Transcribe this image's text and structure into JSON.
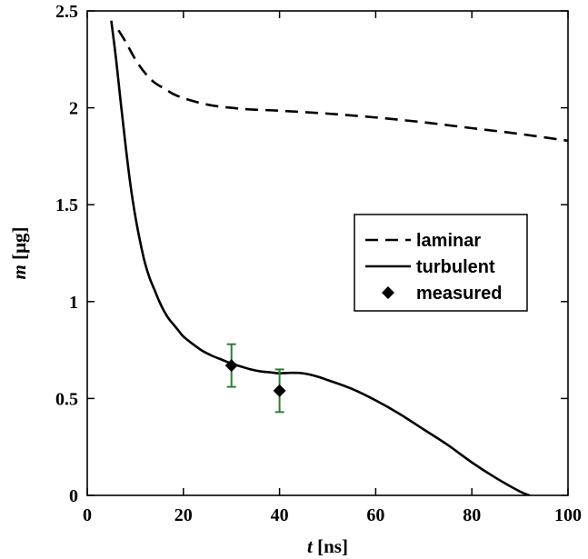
{
  "chart_data": {
    "type": "line",
    "title": "",
    "xlabel": {
      "var": "t",
      "unit": " [ns]"
    },
    "ylabel": {
      "var": "m",
      "unit": " [μg]"
    },
    "xlim": [
      0,
      100
    ],
    "ylim": [
      0,
      2.5
    ],
    "xticks": [
      0,
      20,
      40,
      60,
      80,
      100
    ],
    "xtick_labels": [
      "0",
      "20",
      "40",
      "60",
      "80",
      "100"
    ],
    "yticks": [
      0,
      0.5,
      1,
      1.5,
      2,
      2.5
    ],
    "ytick_labels": [
      "0",
      "0.5",
      "1",
      "1.5",
      "2",
      "2.5"
    ],
    "grid": false,
    "legend_position": "right-middle",
    "series": [
      {
        "name": "laminar",
        "style": "dashed",
        "color": "#000000",
        "x": [
          6.5,
          8,
          10,
          12,
          14,
          16,
          18,
          20,
          22,
          24,
          26,
          28,
          30,
          32,
          35,
          40,
          50,
          60,
          70,
          80,
          90,
          100
        ],
        "y": [
          2.4,
          2.34,
          2.25,
          2.18,
          2.13,
          2.1,
          2.07,
          2.05,
          2.035,
          2.022,
          2.012,
          2.005,
          2.0,
          1.995,
          1.99,
          1.985,
          1.97,
          1.95,
          1.925,
          1.895,
          1.865,
          1.83
        ]
      },
      {
        "name": "turbulent",
        "style": "solid",
        "color": "#000000",
        "x": [
          5,
          6,
          7,
          8,
          9,
          10,
          11,
          12,
          13,
          14,
          15,
          16,
          17,
          18,
          19,
          20,
          22,
          24,
          26,
          28,
          30,
          32,
          34,
          36,
          38,
          40,
          42,
          44,
          46,
          48,
          50,
          55,
          60,
          65,
          70,
          75,
          80,
          85,
          90,
          92
        ],
        "y": [
          2.45,
          2.25,
          2.02,
          1.8,
          1.6,
          1.44,
          1.31,
          1.2,
          1.12,
          1.06,
          1.0,
          0.95,
          0.91,
          0.88,
          0.85,
          0.82,
          0.78,
          0.745,
          0.72,
          0.7,
          0.68,
          0.665,
          0.65,
          0.64,
          0.635,
          0.63,
          0.632,
          0.632,
          0.625,
          0.612,
          0.595,
          0.55,
          0.49,
          0.42,
          0.34,
          0.26,
          0.17,
          0.09,
          0.02,
          0.0
        ]
      },
      {
        "name": "measured",
        "style": "marker",
        "marker": "diamond",
        "color": "#000000",
        "error_color": "#2e7d32",
        "x": [
          30,
          40
        ],
        "y": [
          0.67,
          0.54
        ],
        "err_low": [
          0.56,
          0.43
        ],
        "err_high": [
          0.78,
          0.65
        ]
      }
    ]
  }
}
